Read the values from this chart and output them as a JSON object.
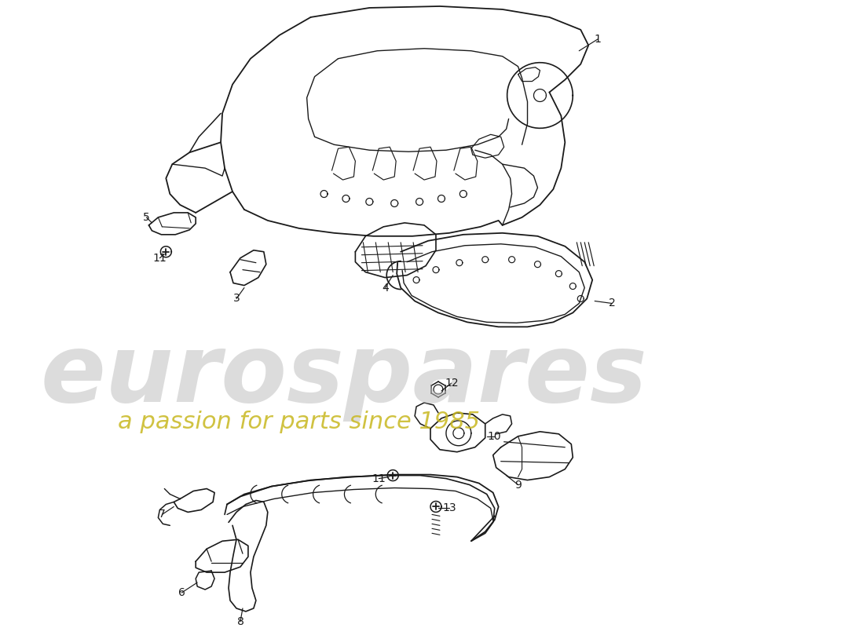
{
  "bg_color": "#ffffff",
  "line_color": "#1a1a1a",
  "watermark_text1": "eurospares",
  "watermark_text2": "a passion for parts since 1985",
  "watermark_color1": "#c0c0c0",
  "watermark_color2": "#c8b820",
  "figsize": [
    11.0,
    8.0
  ],
  "dpi": 100
}
